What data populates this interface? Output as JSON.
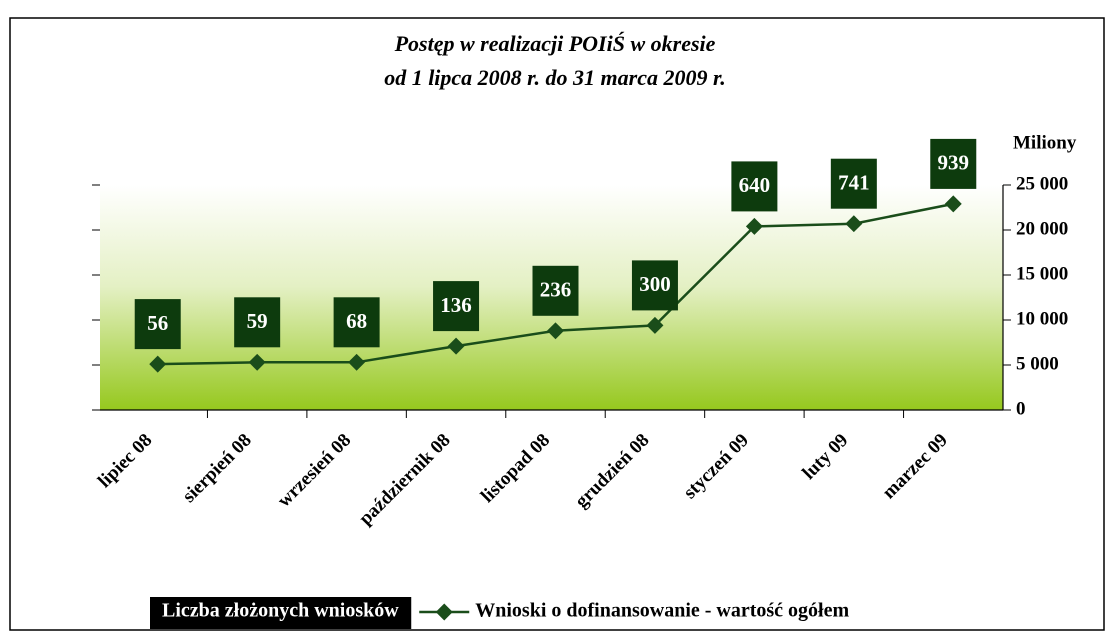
{
  "chart_data": {
    "type": "line",
    "title": [
      "Postęp w realizacji POIiŚ w okresie",
      "od 1 lipca 2008 r. do 31 marca 2009 r."
    ],
    "y_axis_label": "Miliony",
    "categories": [
      "lipiec 08",
      "sierpień 08",
      "wrzesień 08",
      "październik 08",
      "listopad 08",
      "grudzień 08",
      "styczeń 09",
      "luty 09",
      "marzec 09"
    ],
    "series": [
      {
        "name": "Wnioski o dofinansowanie - wartość ogółem",
        "color": "#1a4d1a",
        "values": [
          5100,
          5300,
          5300,
          7100,
          8800,
          9400,
          20400,
          20700,
          22900
        ]
      },
      {
        "name": "Liczba złożonych wniosków",
        "color": "#0d3b0d",
        "values": [
          56,
          59,
          68,
          136,
          236,
          300,
          640,
          741,
          939
        ]
      }
    ],
    "ylim": [
      0,
      25000
    ],
    "yticks": [
      0,
      {
        "value": 5000,
        "label": "5 000"
      },
      {
        "value": 10000,
        "label": "10 000"
      },
      {
        "value": 15000,
        "label": "15 000"
      },
      {
        "value": 20000,
        "label": "20 000"
      },
      {
        "value": 25000,
        "label": "25 000"
      }
    ],
    "y_axis_side": "right",
    "grid": false,
    "legend": "bottom"
  }
}
